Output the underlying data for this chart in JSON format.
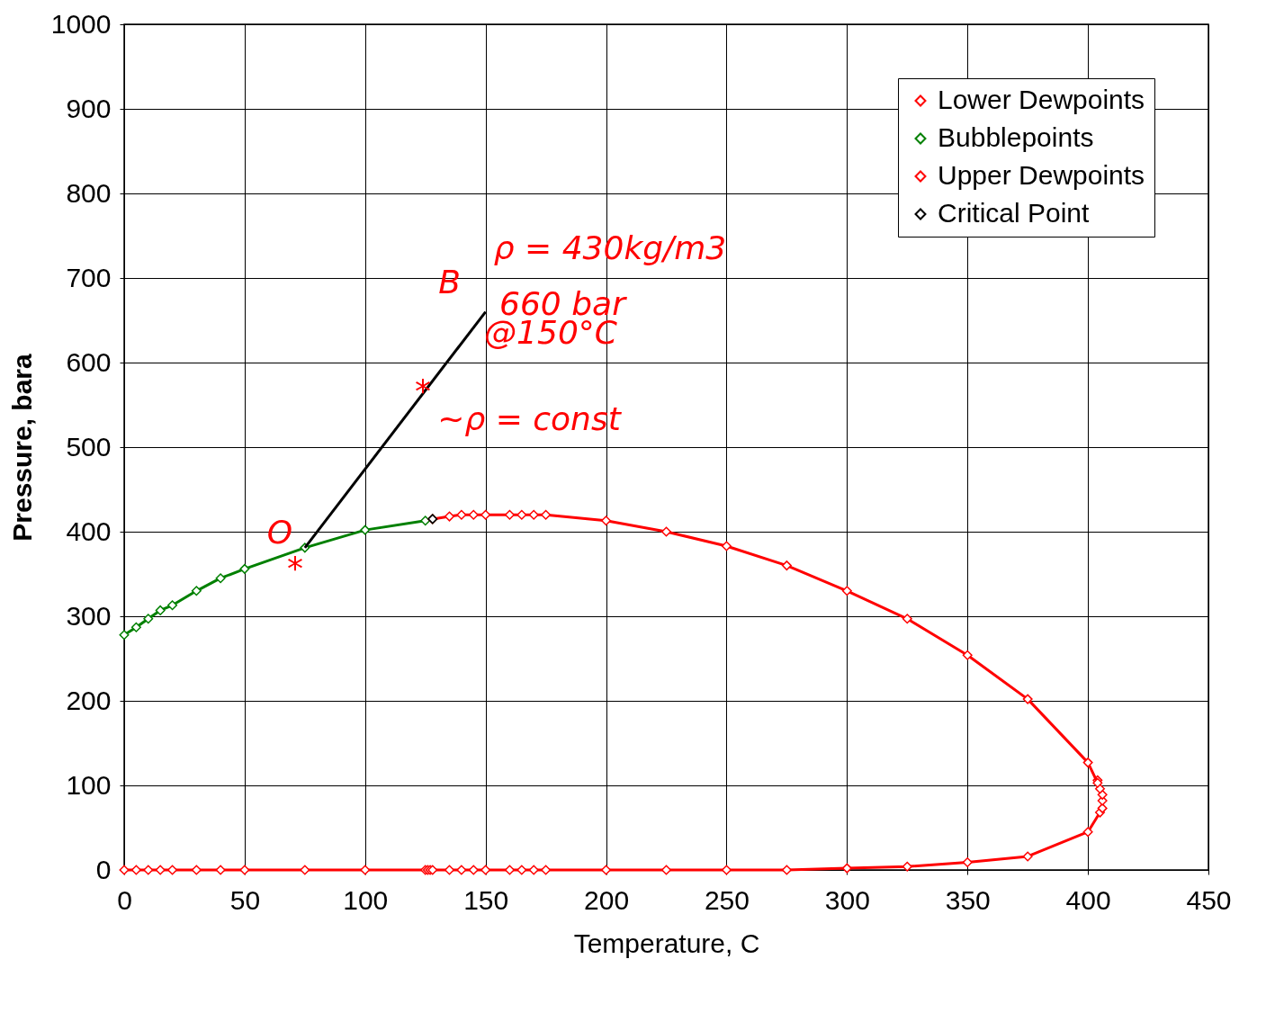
{
  "chart_data": {
    "type": "line",
    "xlabel": "Temperature, C",
    "ylabel": "Pressure, bara",
    "xlim": [
      0,
      450
    ],
    "xticks": [
      0,
      50,
      100,
      150,
      200,
      250,
      300,
      350,
      400,
      450
    ],
    "ylim": [
      0,
      1000
    ],
    "yticks": [
      0,
      100,
      200,
      300,
      400,
      500,
      600,
      700,
      800,
      900,
      {
        "value": 1000,
        "label": "1000"
      }
    ],
    "grid": true,
    "legend": "top right",
    "marker": "diamond",
    "series": [
      {
        "name": "Lower Dewpoints",
        "color": "#ff0000",
        "x": [
          0,
          5,
          10,
          15,
          20,
          30,
          40,
          50,
          75,
          100,
          125,
          126,
          127,
          128,
          135,
          140,
          145,
          150,
          160,
          165,
          170,
          175,
          200,
          225,
          250,
          275,
          300,
          325,
          350,
          375,
          400,
          405,
          406,
          406,
          406,
          405,
          404
        ],
        "values": [
          0,
          0,
          0,
          0,
          0,
          0,
          0,
          0,
          0,
          0,
          0,
          0,
          0,
          0,
          0,
          0,
          0,
          0,
          0,
          0,
          0,
          0,
          0,
          0,
          0,
          0,
          2,
          4,
          9,
          16,
          45,
          68,
          73,
          82,
          89,
          96,
          106
        ]
      },
      {
        "name": "Bubblepoints",
        "color": "#008000",
        "x": [
          0,
          5,
          10,
          15,
          20,
          30,
          40,
          50,
          75,
          100,
          125,
          128
        ],
        "values": [
          278,
          287,
          297,
          307,
          313,
          330,
          345,
          356,
          381,
          402,
          413,
          415
        ]
      },
      {
        "name": "Upper Dewpoints",
        "color": "#ff0000",
        "x": [
          128,
          135,
          140,
          145,
          150,
          160,
          165,
          170,
          175,
          200,
          225,
          250,
          275,
          300,
          325,
          350,
          375,
          400,
          404
        ],
        "values": [
          415,
          418,
          420,
          420,
          420,
          420,
          420,
          420,
          420,
          413,
          400,
          383,
          360,
          330,
          297,
          254,
          202,
          127,
          103
        ]
      },
      {
        "name": "Critical Point",
        "type": "scatter",
        "color": "#000000",
        "x": [
          128
        ],
        "values": [
          415
        ]
      },
      {
        "color": "#000000",
        "marker": "none",
        "x": [
          75,
          150
        ],
        "values": [
          381,
          660
        ]
      }
    ],
    "annotations": [
      "ρ = 430kg/m3",
      {
        "text": "B",
        "x": 150,
        "y": 660
      },
      "660 bar",
      "@150°C",
      "*",
      "~ρ = const",
      {
        "text": "O",
        "x": 75,
        "y": 381
      },
      "*"
    ]
  }
}
